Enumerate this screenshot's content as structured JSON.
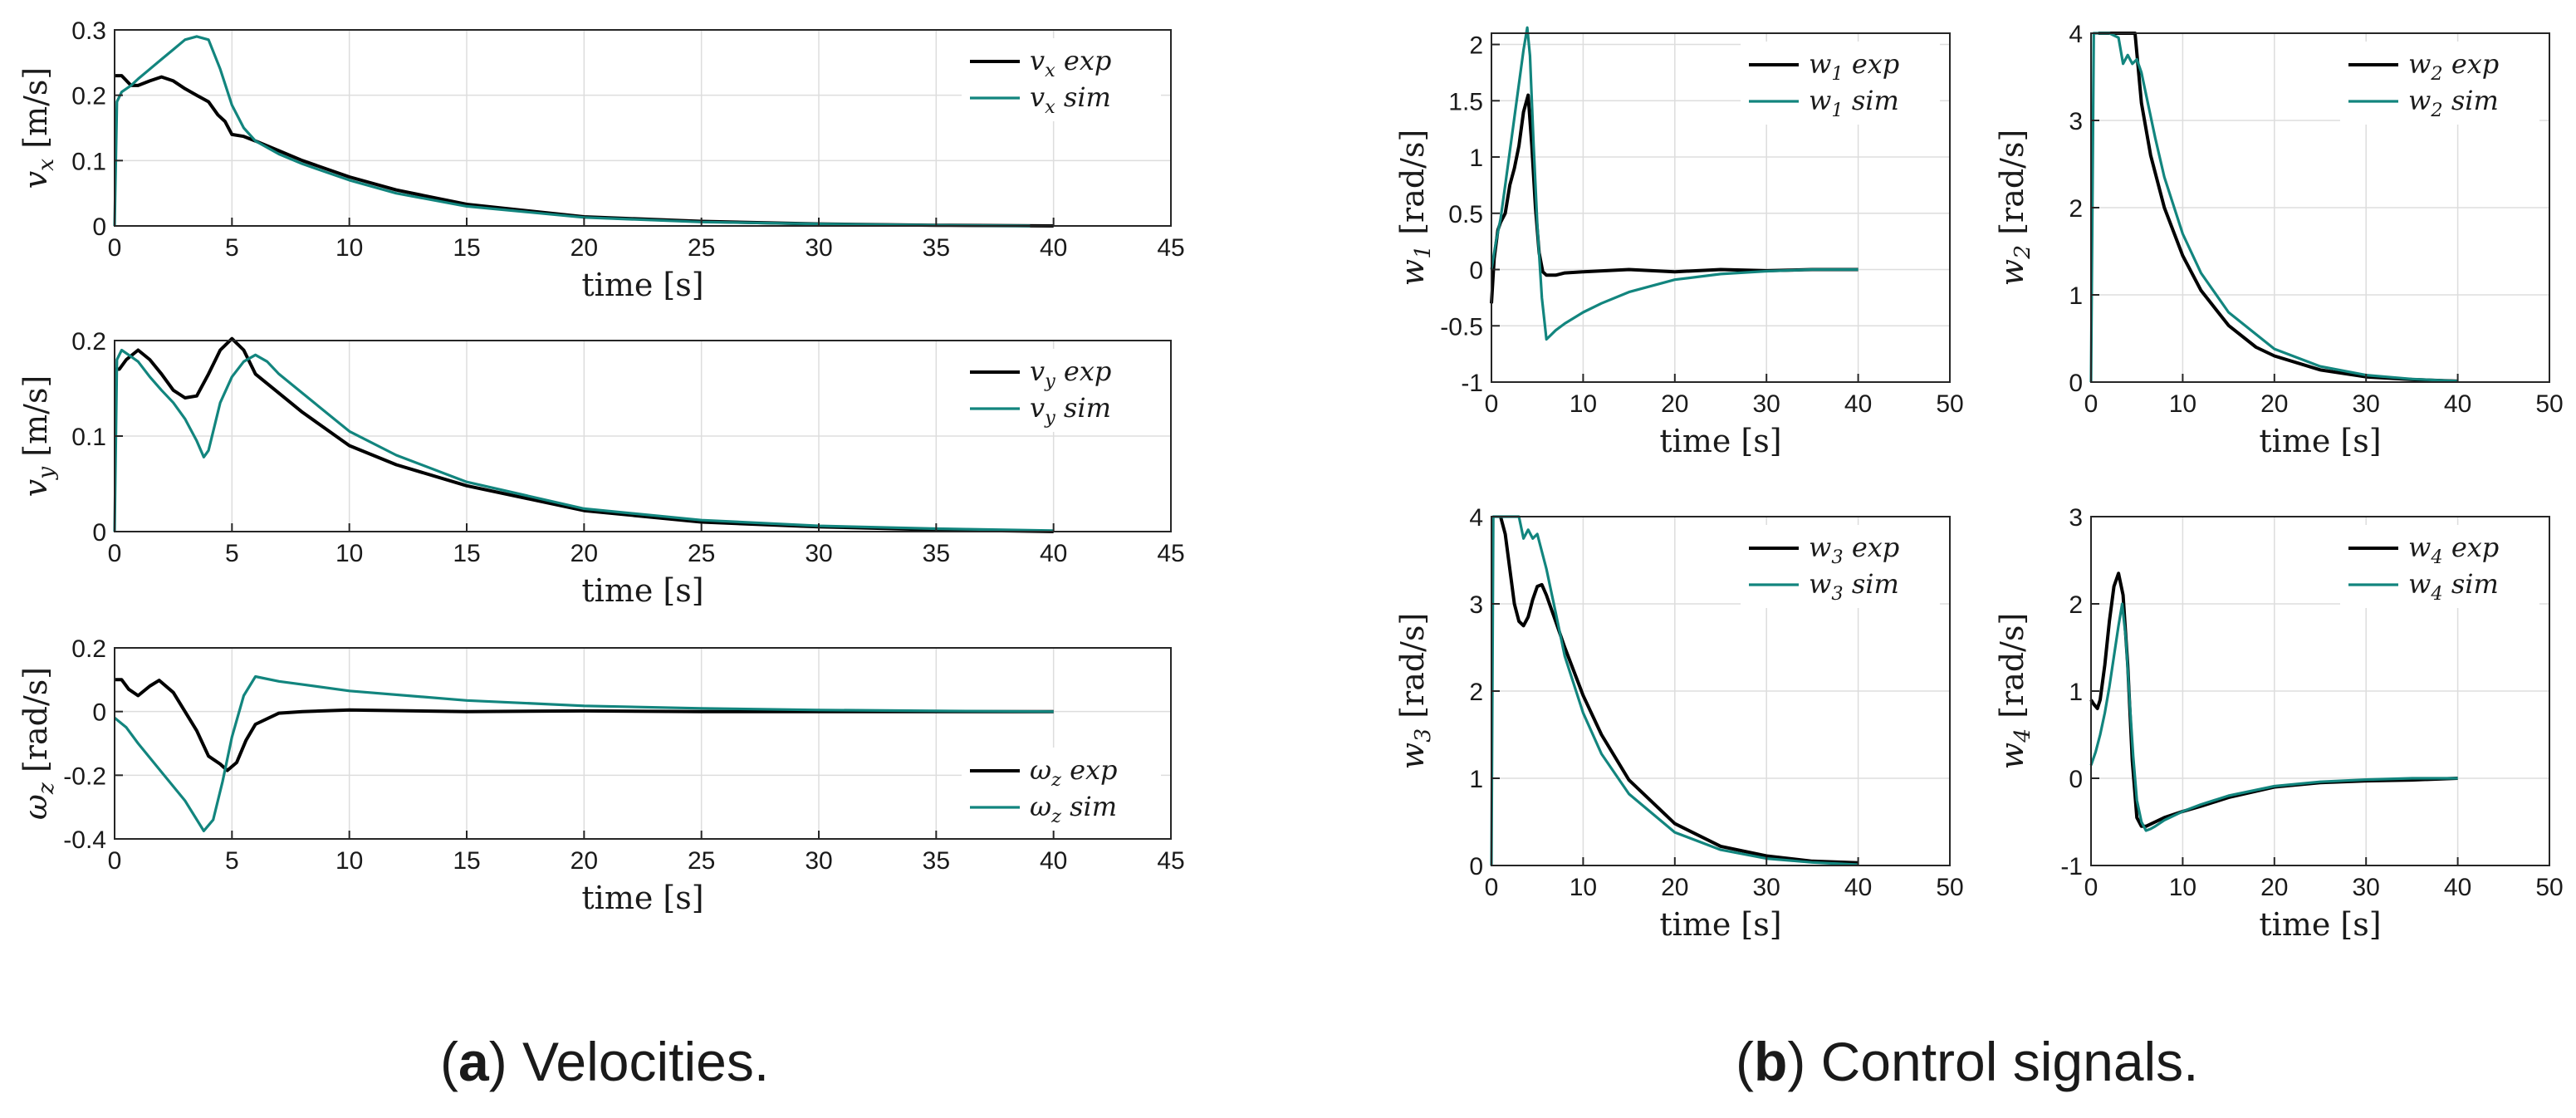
{
  "colors": {
    "exp": "#000000",
    "sim": "#12857e",
    "grid": "#dddddd",
    "axis": "#262626"
  },
  "captions": {
    "a_letter": "a",
    "a_text": "Velocities.",
    "b_letter": "b",
    "b_text": "Control signals."
  },
  "chart_data": [
    {
      "id": "vx",
      "type": "line",
      "xlabel": "time [s]",
      "ylabel": "v_x [m/s]",
      "xlim": [
        0,
        45
      ],
      "ylim": [
        0,
        0.3
      ],
      "xticks": [
        0,
        5,
        10,
        15,
        20,
        25,
        30,
        35,
        40,
        45
      ],
      "yticks": [
        0,
        0.1,
        0.2,
        0.3
      ],
      "xtick_labels": [
        "0",
        "5",
        "10",
        "15",
        "20",
        "25",
        "30",
        "35",
        "40",
        "45"
      ],
      "ytick_labels": [
        "0",
        "0.1",
        "0.2",
        "0.3"
      ],
      "legend": "top-right",
      "series": [
        {
          "name": "v_x exp",
          "color": "#000000",
          "x": [
            0,
            0.3,
            0.7,
            1.0,
            1.5,
            2.0,
            2.5,
            3.0,
            3.5,
            4.0,
            4.4,
            4.7,
            5.0,
            5.5,
            6.0,
            7,
            8,
            10,
            12,
            15,
            20,
            25,
            30,
            35,
            40
          ],
          "y": [
            0.23,
            0.23,
            0.215,
            0.215,
            0.222,
            0.228,
            0.222,
            0.21,
            0.2,
            0.19,
            0.17,
            0.16,
            0.14,
            0.137,
            0.13,
            0.115,
            0.1,
            0.075,
            0.055,
            0.033,
            0.014,
            0.007,
            0.003,
            0.001,
            0.0
          ]
        },
        {
          "name": "v_x sim",
          "color": "#12857e",
          "x": [
            0,
            0.1,
            0.3,
            0.7,
            1.0,
            1.5,
            2.0,
            2.5,
            3.0,
            3.5,
            4.0,
            4.5,
            5.0,
            5.5,
            6.0,
            7,
            8,
            10,
            12,
            15,
            20,
            25,
            30,
            35,
            39
          ],
          "y": [
            0,
            0.19,
            0.205,
            0.215,
            0.225,
            0.24,
            0.255,
            0.27,
            0.285,
            0.29,
            0.285,
            0.24,
            0.185,
            0.15,
            0.13,
            0.11,
            0.095,
            0.07,
            0.05,
            0.03,
            0.013,
            0.006,
            0.003,
            0.001,
            0.0
          ]
        }
      ]
    },
    {
      "id": "vy",
      "type": "line",
      "xlabel": "time [s]",
      "ylabel": "v_y [m/s]",
      "xlim": [
        0,
        45
      ],
      "ylim": [
        0,
        0.2
      ],
      "xticks": [
        0,
        5,
        10,
        15,
        20,
        25,
        30,
        35,
        40,
        45
      ],
      "yticks": [
        0,
        0.1,
        0.2
      ],
      "xtick_labels": [
        "0",
        "5",
        "10",
        "15",
        "20",
        "25",
        "30",
        "35",
        "40",
        "45"
      ],
      "ytick_labels": [
        "0",
        "0.1",
        "0.2"
      ],
      "legend": "top-right",
      "series": [
        {
          "name": "v_y exp",
          "color": "#000000",
          "x": [
            0,
            0.2,
            0.5,
            1.0,
            1.5,
            2.0,
            2.5,
            3.0,
            3.5,
            4.0,
            4.5,
            5.0,
            5.5,
            6.0,
            7,
            8,
            10,
            12,
            15,
            20,
            25,
            30,
            35,
            40
          ],
          "y": [
            0.17,
            0.17,
            0.18,
            0.19,
            0.18,
            0.165,
            0.148,
            0.14,
            0.142,
            0.165,
            0.19,
            0.202,
            0.19,
            0.165,
            0.145,
            0.125,
            0.09,
            0.07,
            0.048,
            0.022,
            0.01,
            0.005,
            0.002,
            0.0
          ]
        },
        {
          "name": "v_y sim",
          "color": "#12857e",
          "x": [
            0,
            0.1,
            0.3,
            0.6,
            1.0,
            1.5,
            2.0,
            2.5,
            3.0,
            3.5,
            3.8,
            4.0,
            4.5,
            5.0,
            5.5,
            6.0,
            6.5,
            7,
            8,
            10,
            12,
            15,
            20,
            25,
            30,
            35,
            40
          ],
          "y": [
            0,
            0.18,
            0.19,
            0.185,
            0.178,
            0.162,
            0.148,
            0.135,
            0.118,
            0.095,
            0.078,
            0.085,
            0.135,
            0.162,
            0.178,
            0.185,
            0.178,
            0.165,
            0.145,
            0.105,
            0.08,
            0.052,
            0.024,
            0.012,
            0.006,
            0.003,
            0.001
          ]
        }
      ]
    },
    {
      "id": "wz",
      "type": "line",
      "xlabel": "time [s]",
      "ylabel": "ω_z [rad/s]",
      "xlim": [
        0,
        45
      ],
      "ylim": [
        -0.4,
        0.2
      ],
      "xticks": [
        0,
        5,
        10,
        15,
        20,
        25,
        30,
        35,
        40,
        45
      ],
      "yticks": [
        -0.4,
        -0.2,
        0,
        0.2
      ],
      "xtick_labels": [
        "0",
        "5",
        "10",
        "15",
        "20",
        "25",
        "30",
        "35",
        "40",
        "45"
      ],
      "ytick_labels": [
        "-0.4",
        "-0.2",
        "0",
        "0.2"
      ],
      "legend": "bottom-right",
      "series": [
        {
          "name": "ω_z exp",
          "color": "#000000",
          "x": [
            0,
            0.3,
            0.6,
            1.0,
            1.5,
            1.9,
            2.5,
            3.0,
            3.5,
            4.0,
            4.5,
            4.8,
            5.2,
            5.6,
            6.0,
            7,
            8,
            10,
            15,
            20,
            25,
            30,
            35,
            40
          ],
          "y": [
            0.1,
            0.1,
            0.07,
            0.05,
            0.08,
            0.098,
            0.06,
            0.0,
            -0.06,
            -0.14,
            -0.165,
            -0.185,
            -0.16,
            -0.09,
            -0.04,
            -0.005,
            0.0,
            0.005,
            0.0,
            0.002,
            0.0,
            0.0,
            0.0,
            0.0
          ]
        },
        {
          "name": "ω_z sim",
          "color": "#12857e",
          "x": [
            0,
            0.5,
            1.0,
            2.0,
            3.0,
            3.8,
            4.2,
            4.6,
            5.0,
            5.5,
            6.0,
            7,
            8,
            10,
            15,
            20,
            25,
            30,
            35,
            40
          ],
          "y": [
            -0.02,
            -0.05,
            -0.1,
            -0.19,
            -0.28,
            -0.375,
            -0.34,
            -0.22,
            -0.08,
            0.05,
            0.11,
            0.095,
            0.085,
            0.065,
            0.035,
            0.018,
            0.01,
            0.005,
            0.002,
            0.0
          ]
        }
      ]
    },
    {
      "id": "w1",
      "type": "line",
      "xlabel": "time [s]",
      "ylabel": "w_1 [rad/s]",
      "xlim": [
        0,
        50
      ],
      "ylim": [
        -1,
        2.1
      ],
      "xticks": [
        0,
        10,
        20,
        30,
        40,
        50
      ],
      "yticks": [
        -1,
        -0.5,
        0,
        0.5,
        1,
        1.5,
        2
      ],
      "xtick_labels": [
        "0",
        "10",
        "20",
        "30",
        "40",
        "50"
      ],
      "ytick_labels": [
        "-1",
        "-0.5",
        "0",
        "0.5",
        "1",
        "1.5",
        "2"
      ],
      "legend": "top-right",
      "series": [
        {
          "name": "w_1 exp",
          "color": "#000000",
          "x": [
            0,
            0.3,
            0.7,
            1.0,
            1.5,
            2.0,
            2.5,
            3.0,
            3.5,
            4.0,
            4.4,
            4.8,
            5.2,
            5.6,
            6.0,
            7,
            8,
            10,
            15,
            20,
            25,
            30,
            35,
            40
          ],
          "y": [
            -0.3,
            0.1,
            0.35,
            0.42,
            0.5,
            0.75,
            0.9,
            1.1,
            1.4,
            1.55,
            1.1,
            0.55,
            0.15,
            -0.02,
            -0.05,
            -0.05,
            -0.03,
            -0.02,
            0.0,
            -0.02,
            0.0,
            -0.01,
            0.0,
            0.0
          ]
        },
        {
          "name": "w_1 sim",
          "color": "#12857e",
          "x": [
            0,
            0.5,
            1.0,
            1.5,
            2.0,
            2.5,
            3.0,
            3.5,
            3.9,
            4.2,
            4.6,
            5.0,
            5.5,
            6.0,
            6.5,
            7,
            8,
            10,
            12,
            15,
            20,
            25,
            30,
            35,
            40
          ],
          "y": [
            0.0,
            0.25,
            0.45,
            0.75,
            1.05,
            1.35,
            1.65,
            1.95,
            2.15,
            1.9,
            1.1,
            0.4,
            -0.25,
            -0.62,
            -0.58,
            -0.54,
            -0.48,
            -0.38,
            -0.3,
            -0.2,
            -0.09,
            -0.04,
            -0.015,
            0.0,
            0.0
          ]
        }
      ]
    },
    {
      "id": "w2",
      "type": "line",
      "xlabel": "time [s]",
      "ylabel": "w_2 [rad/s]",
      "xlim": [
        0,
        50
      ],
      "ylim": [
        0,
        4
      ],
      "xticks": [
        0,
        10,
        20,
        30,
        40,
        50
      ],
      "yticks": [
        0,
        1,
        2,
        3,
        4
      ],
      "xtick_labels": [
        "0",
        "10",
        "20",
        "30",
        "40",
        "50"
      ],
      "ytick_labels": [
        "0",
        "1",
        "2",
        "3",
        "4"
      ],
      "legend": "top-right",
      "series": [
        {
          "name": "w_2 exp",
          "color": "#000000",
          "x": [
            0.8,
            1,
            2,
            3,
            4,
            4.8,
            5.5,
            6.5,
            8,
            10,
            12,
            15,
            18,
            20,
            25,
            30,
            35,
            40
          ],
          "y": [
            4.0,
            4.0,
            4.0,
            4.0,
            4.0,
            4.0,
            3.2,
            2.6,
            2.0,
            1.45,
            1.05,
            0.65,
            0.4,
            0.3,
            0.14,
            0.06,
            0.03,
            0.01
          ]
        },
        {
          "name": "w_2 sim",
          "color": "#12857e",
          "x": [
            0,
            0.3,
            0.5,
            1,
            2,
            3,
            3.5,
            4,
            4.5,
            5,
            5.5,
            6,
            7,
            8,
            10,
            12,
            15,
            20,
            25,
            30,
            35,
            40
          ],
          "y": [
            0,
            4.0,
            4.0,
            4.0,
            4.0,
            3.95,
            3.65,
            3.75,
            3.65,
            3.7,
            3.55,
            3.3,
            2.8,
            2.35,
            1.7,
            1.25,
            0.8,
            0.38,
            0.18,
            0.08,
            0.035,
            0.01
          ]
        }
      ]
    },
    {
      "id": "w3",
      "type": "line",
      "xlabel": "time [s]",
      "ylabel": "w_3 [rad/s]",
      "xlim": [
        0,
        50
      ],
      "ylim": [
        0,
        4
      ],
      "xticks": [
        0,
        10,
        20,
        30,
        40,
        50
      ],
      "yticks": [
        0,
        1,
        2,
        3,
        4
      ],
      "xtick_labels": [
        "0",
        "10",
        "20",
        "30",
        "40",
        "50"
      ],
      "ytick_labels": [
        "0",
        "1",
        "2",
        "3",
        "4"
      ],
      "legend": "top-right",
      "series": [
        {
          "name": "w_3 exp",
          "color": "#000000",
          "x": [
            1.0,
            1.5,
            2.0,
            2.5,
            3.0,
            3.5,
            4.0,
            4.5,
            5.0,
            5.5,
            6.0,
            7,
            8,
            10,
            12,
            15,
            20,
            25,
            30,
            35,
            40
          ],
          "y": [
            4.0,
            3.8,
            3.4,
            3.0,
            2.8,
            2.75,
            2.85,
            3.05,
            3.2,
            3.22,
            3.1,
            2.8,
            2.5,
            1.95,
            1.5,
            0.98,
            0.48,
            0.22,
            0.11,
            0.05,
            0.03
          ]
        },
        {
          "name": "w_3 sim",
          "color": "#12857e",
          "x": [
            0,
            0.2,
            0.5,
            1,
            2,
            3,
            3.5,
            4,
            4.5,
            5,
            5.5,
            6,
            7,
            8,
            10,
            12,
            15,
            20,
            25,
            30,
            35,
            40
          ],
          "y": [
            0,
            4.0,
            4.0,
            4.0,
            4.0,
            4.0,
            3.75,
            3.85,
            3.75,
            3.8,
            3.6,
            3.4,
            2.9,
            2.4,
            1.75,
            1.28,
            0.82,
            0.38,
            0.18,
            0.08,
            0.035,
            0.01
          ]
        }
      ]
    },
    {
      "id": "w4",
      "type": "line",
      "xlabel": "time [s]",
      "ylabel": "w_4 [rad/s]",
      "xlim": [
        0,
        50
      ],
      "ylim": [
        -1,
        3
      ],
      "xticks": [
        0,
        10,
        20,
        30,
        40,
        50
      ],
      "yticks": [
        -1,
        0,
        1,
        2,
        3
      ],
      "xtick_labels": [
        "0",
        "10",
        "20",
        "30",
        "40",
        "50"
      ],
      "ytick_labels": [
        "-1",
        "0",
        "1",
        "2",
        "3"
      ],
      "legend": "top-right",
      "series": [
        {
          "name": "w_4 exp",
          "color": "#000000",
          "x": [
            0,
            0.3,
            0.7,
            1.0,
            1.5,
            2.0,
            2.5,
            3.0,
            3.5,
            4.0,
            4.5,
            5.0,
            5.5,
            6.0,
            7,
            8,
            10,
            12,
            15,
            20,
            25,
            30,
            35,
            40
          ],
          "y": [
            0.9,
            0.85,
            0.8,
            0.9,
            1.3,
            1.8,
            2.2,
            2.35,
            2.1,
            1.3,
            0.2,
            -0.45,
            -0.55,
            -0.55,
            -0.5,
            -0.45,
            -0.38,
            -0.32,
            -0.22,
            -0.1,
            -0.05,
            -0.03,
            -0.02,
            0.0
          ]
        },
        {
          "name": "w_4 sim",
          "color": "#12857e",
          "x": [
            0,
            0.5,
            1.0,
            1.5,
            2.0,
            2.5,
            3.0,
            3.4,
            3.8,
            4.2,
            4.6,
            5.0,
            5.5,
            6.0,
            6.5,
            7,
            8,
            10,
            12,
            15,
            20,
            25,
            30,
            35,
            40
          ],
          "y": [
            0.15,
            0.3,
            0.5,
            0.75,
            1.05,
            1.4,
            1.75,
            2.0,
            1.6,
            0.9,
            0.25,
            -0.25,
            -0.5,
            -0.6,
            -0.58,
            -0.55,
            -0.48,
            -0.38,
            -0.3,
            -0.2,
            -0.09,
            -0.04,
            -0.015,
            0.0,
            0.0
          ]
        }
      ]
    }
  ]
}
